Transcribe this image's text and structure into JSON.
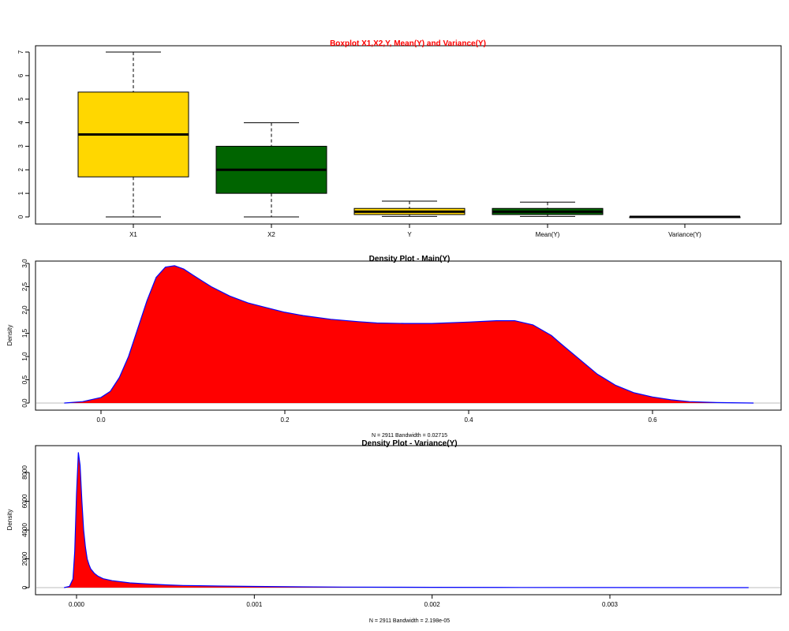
{
  "colors": {
    "box_gold": "#ffd700",
    "box_green": "#006400",
    "density_fill": "#ff0000",
    "density_line": "#0000ff",
    "title_red": "#ff0000",
    "baseline": "#bebebe"
  },
  "chart_data": [
    {
      "type": "boxplot",
      "title": "Boxplot X1,X2,Y, Mean(Y) and Variance(Y)",
      "ylim": [
        0,
        7
      ],
      "yticks": [
        "0",
        "1",
        "2",
        "3",
        "4",
        "5",
        "6",
        "7"
      ],
      "categories": [
        "X1",
        "X2",
        "Y",
        "Mean(Y)",
        "Variance(Y)"
      ],
      "boxes": [
        {
          "name": "X1",
          "min": 0,
          "q1": 1.7,
          "median": 3.5,
          "q3": 5.3,
          "max": 7,
          "color": "#ffd700"
        },
        {
          "name": "X2",
          "min": 0,
          "q1": 1,
          "median": 2,
          "q3": 3,
          "max": 4,
          "color": "#006400"
        },
        {
          "name": "Y",
          "min": 0.02,
          "q1": 0.1,
          "median": 0.22,
          "q3": 0.36,
          "max": 0.67,
          "color": "#ffd700"
        },
        {
          "name": "Mean(Y)",
          "min": 0.02,
          "q1": 0.1,
          "median": 0.22,
          "q3": 0.36,
          "max": 0.63,
          "color": "#006400"
        },
        {
          "name": "Variance(Y)",
          "min": 0,
          "q1": 0,
          "median": 0.0001,
          "q3": 0.0002,
          "max": 0.004,
          "color": "#ffd700"
        }
      ],
      "grid": false
    },
    {
      "type": "area",
      "title": "Density Plot - Main(Y)",
      "xlabel": "N = 2911   Bandwidth = 0.02715",
      "ylabel": "Density",
      "xlim": [
        -0.04,
        0.71
      ],
      "ylim": [
        0,
        3.0
      ],
      "xticks": [
        "0.0",
        "0.2",
        "0.4",
        "0.6"
      ],
      "yticks": [
        "0.0",
        "0.5",
        "1.0",
        "1.5",
        "2.0",
        "2.5",
        "3.0"
      ],
      "x": [
        -0.04,
        -0.02,
        0.0,
        0.01,
        0.02,
        0.03,
        0.04,
        0.05,
        0.06,
        0.07,
        0.08,
        0.09,
        0.1,
        0.12,
        0.14,
        0.16,
        0.18,
        0.2,
        0.22,
        0.25,
        0.28,
        0.3,
        0.33,
        0.36,
        0.4,
        0.43,
        0.45,
        0.47,
        0.49,
        0.5,
        0.52,
        0.54,
        0.56,
        0.58,
        0.6,
        0.62,
        0.64,
        0.67,
        0.71
      ],
      "y": [
        0.0,
        0.03,
        0.12,
        0.25,
        0.55,
        1.0,
        1.6,
        2.2,
        2.7,
        2.92,
        2.95,
        2.88,
        2.75,
        2.5,
        2.3,
        2.15,
        2.05,
        1.95,
        1.88,
        1.8,
        1.75,
        1.72,
        1.71,
        1.71,
        1.74,
        1.77,
        1.77,
        1.68,
        1.45,
        1.28,
        0.95,
        0.62,
        0.38,
        0.22,
        0.13,
        0.07,
        0.03,
        0.01,
        0.0
      ]
    },
    {
      "type": "area",
      "title": "Density Plot - Variance(Y)",
      "xlabel": "N = 2911   Bandwidth = 2.198e-05",
      "ylabel": "Density",
      "xlim": [
        -7e-05,
        0.00378
      ],
      "ylim": [
        0,
        9500
      ],
      "xticks": [
        "0.000",
        "0.001",
        "0.002",
        "0.003"
      ],
      "yticks": [
        "0",
        "2000",
        "4000",
        "6000",
        "8000"
      ],
      "x": [
        -7e-05,
        -4e-05,
        -2e-05,
        -1e-05,
        0.0,
        1e-05,
        2e-05,
        3e-05,
        4e-05,
        5e-05,
        6e-05,
        7e-05,
        8e-05,
        0.0001,
        0.00012,
        0.00015,
        0.0002,
        0.0003,
        0.0004,
        0.0005,
        0.0006,
        0.0008,
        0.001,
        0.0012,
        0.0015,
        0.0018,
        0.002,
        0.0025,
        0.003,
        0.0035,
        0.00378
      ],
      "y": [
        0,
        80,
        600,
        2500,
        6500,
        9400,
        8500,
        6000,
        4000,
        2800,
        2000,
        1600,
        1300,
        1000,
        800,
        620,
        480,
        330,
        250,
        190,
        150,
        110,
        80,
        60,
        40,
        25,
        20,
        10,
        5,
        2,
        0
      ]
    }
  ]
}
